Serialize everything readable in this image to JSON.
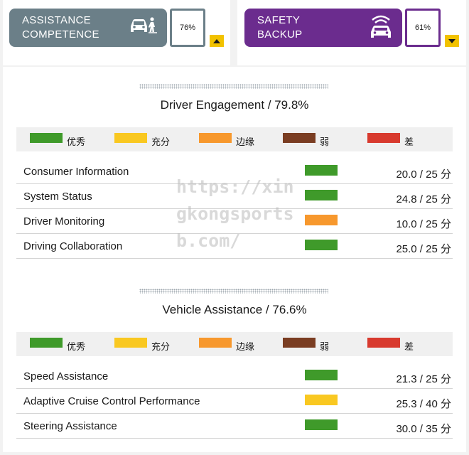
{
  "header": {
    "assistance": {
      "title_line1": "ASSISTANCE",
      "title_line2": "COMPETENCE",
      "icon": "car-pedestrian-icon",
      "score": "76%",
      "color": "#6b7f88"
    },
    "safety": {
      "title_line1": "SAFETY",
      "title_line2": "BACKUP",
      "icon": "car-signal-icon",
      "score": "61%",
      "color": "#6b2c8e"
    },
    "toggle_color": "#f2c200"
  },
  "legend": [
    {
      "label": "优秀",
      "color": "#3f9a2a"
    },
    {
      "label": "充分",
      "color": "#f9c821"
    },
    {
      "label": "边缘",
      "color": "#f7982d"
    },
    {
      "label": "弱",
      "color": "#7a3d22"
    },
    {
      "label": "差",
      "color": "#d83a2e"
    }
  ],
  "sections": [
    {
      "title": "Driver Engagement / 79.8%",
      "rows": [
        {
          "label": "Consumer Information",
          "rating": "优秀",
          "score": "20.0 / 25 分"
        },
        {
          "label": "System Status",
          "rating": "优秀",
          "score": "24.8 / 25 分"
        },
        {
          "label": "Driver Monitoring",
          "rating": "边缘",
          "score": "10.0 / 25 分"
        },
        {
          "label": "Driving Collaboration",
          "rating": "优秀",
          "score": "25.0 / 25 分"
        }
      ]
    },
    {
      "title": "Vehicle Assistance / 76.6%",
      "rows": [
        {
          "label": "Speed Assistance",
          "rating": "优秀",
          "score": "21.3 / 25 分"
        },
        {
          "label": "Adaptive Cruise Control Performance",
          "rating": "充分",
          "score": "25.3 / 40 分"
        },
        {
          "label": "Steering Assistance",
          "rating": "优秀",
          "score": "30.0 / 35 分"
        }
      ]
    }
  ],
  "watermark": "https://xingkongsportsb.com/"
}
